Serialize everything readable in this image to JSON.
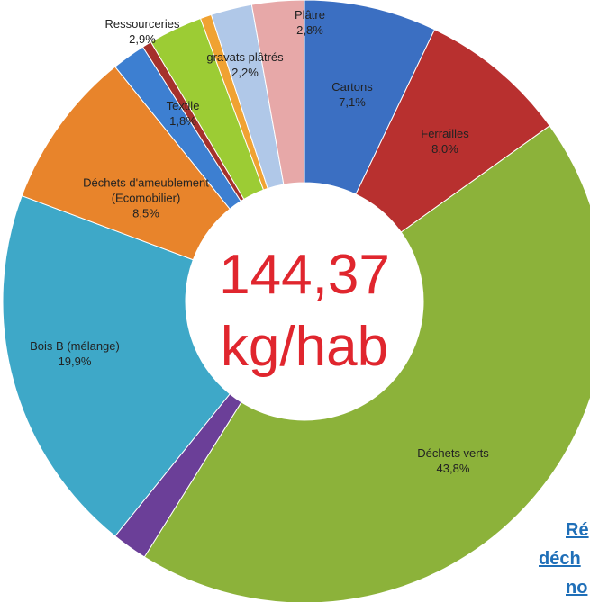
{
  "chart_data": {
    "type": "donut",
    "categories": [
      "Cartons",
      "Ferrailles",
      "Déchets verts",
      null,
      "Bois B (mélange)",
      "Déchets d'ameublement (Ecomobilier)",
      "Textile",
      null,
      "Ressourceries",
      null,
      "gravats plâtrés",
      "Plâtre"
    ],
    "values": [
      7.1,
      8.0,
      43.8,
      1.9,
      19.9,
      8.5,
      1.8,
      0.5,
      2.9,
      0.6,
      2.2,
      2.8
    ],
    "value_labels": [
      "7,1%",
      "8,0%",
      "43,8%",
      null,
      "19,9%",
      "8,5%",
      "1,8%",
      null,
      "2,9%",
      null,
      "2,2%",
      "2,8%"
    ],
    "colors": [
      "#3b6fc2",
      "#b8302f",
      "#8cb23a",
      "#6b3f98",
      "#3ea8c8",
      "#e8842b",
      "#3d7fd1",
      "#a5312c",
      "#9ccc34",
      "#f0a232",
      "#b0c8e8",
      "#e7a8a8"
    ],
    "center_text": [
      "144,37",
      "kg/hab"
    ],
    "side_text": [
      "Ré",
      "déch",
      "no"
    ]
  }
}
